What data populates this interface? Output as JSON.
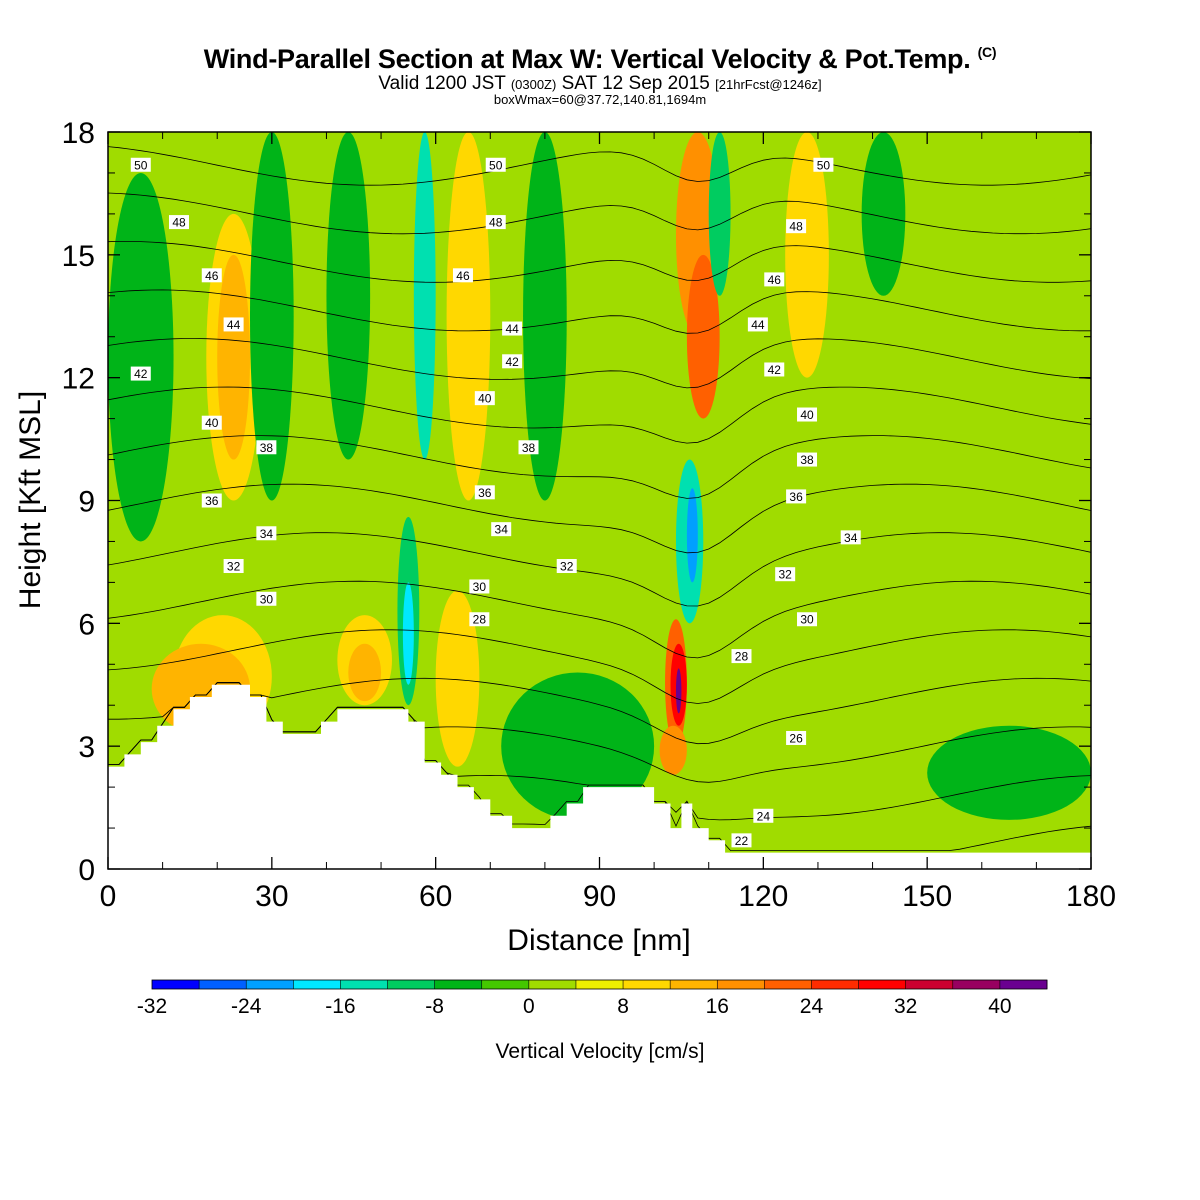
{
  "header": {
    "title": "Wind-Parallel Section at Max W: Vertical Velocity & Pot.Temp.",
    "copyright_mark": "(C)",
    "subtitle_prefix": "Valid 1200 JST",
    "subtitle_utc": "(0300Z)",
    "subtitle_date": "SAT 12 Sep 2015",
    "subtitle_fcst": "[21hrFcst@1246z]",
    "box_info": "boxWmax=60@37.72,140.81,1694m"
  },
  "chart_data": {
    "type": "heatmap",
    "xlabel": "Distance [nm]",
    "ylabel": "Height [Kft MSL]",
    "xlim": [
      0,
      180
    ],
    "ylim": [
      0,
      18
    ],
    "xticks": [
      0,
      30,
      60,
      90,
      120,
      150,
      180
    ],
    "yticks": [
      0,
      3,
      6,
      9,
      12,
      15,
      18
    ],
    "colorbar": {
      "label": "Vertical Velocity [cm/s]",
      "ticks": [
        -32,
        -24,
        -16,
        -8,
        0,
        8,
        16,
        24,
        32,
        40
      ],
      "bins": [
        -32,
        -28,
        -24,
        -20,
        -16,
        -12,
        -8,
        -4,
        0,
        4,
        8,
        12,
        16,
        20,
        24,
        28,
        32,
        36,
        40,
        44
      ],
      "colors": [
        "#0000ff",
        "#0060ff",
        "#00a0ff",
        "#00e8ff",
        "#00e0b0",
        "#00cc60",
        "#00b418",
        "#44c800",
        "#a0dc00",
        "#eef000",
        "#ffd800",
        "#ffb400",
        "#ff9000",
        "#ff6000",
        "#ff2c00",
        "#ff0000",
        "#cc0030",
        "#980060",
        "#6a0090"
      ]
    },
    "terrain_kft": [
      [
        0,
        2.5
      ],
      [
        3,
        2.5
      ],
      [
        3,
        2.8
      ],
      [
        6,
        2.8
      ],
      [
        6,
        3.1
      ],
      [
        9,
        3.1
      ],
      [
        9,
        3.5
      ],
      [
        12,
        3.5
      ],
      [
        12,
        3.9
      ],
      [
        15,
        3.9
      ],
      [
        15,
        4.2
      ],
      [
        19,
        4.2
      ],
      [
        19,
        4.5
      ],
      [
        26,
        4.5
      ],
      [
        26,
        4.2
      ],
      [
        29,
        4.2
      ],
      [
        29,
        3.6
      ],
      [
        32,
        3.6
      ],
      [
        32,
        3.3
      ],
      [
        39,
        3.3
      ],
      [
        39,
        3.6
      ],
      [
        42,
        3.6
      ],
      [
        42,
        3.9
      ],
      [
        55,
        3.9
      ],
      [
        55,
        3.6
      ],
      [
        58,
        3.6
      ],
      [
        58,
        2.6
      ],
      [
        61,
        2.6
      ],
      [
        61,
        2.3
      ],
      [
        64,
        2.3
      ],
      [
        64,
        2.0
      ],
      [
        67,
        2.0
      ],
      [
        67,
        1.7
      ],
      [
        70,
        1.7
      ],
      [
        70,
        1.3
      ],
      [
        74,
        1.3
      ],
      [
        74,
        1.0
      ],
      [
        81,
        1.0
      ],
      [
        81,
        1.3
      ],
      [
        84,
        1.3
      ],
      [
        84,
        1.6
      ],
      [
        87,
        1.6
      ],
      [
        87,
        2.0
      ],
      [
        100,
        2.0
      ],
      [
        100,
        1.6
      ],
      [
        103,
        1.6
      ],
      [
        103,
        1.0
      ],
      [
        105,
        1.0
      ],
      [
        105,
        1.6
      ],
      [
        107,
        1.6
      ],
      [
        107,
        1.0
      ],
      [
        110,
        1.0
      ],
      [
        110,
        0.7
      ],
      [
        113,
        0.7
      ],
      [
        113,
        0.4
      ],
      [
        180,
        0.4
      ]
    ],
    "shading": {
      "background": 0,
      "cells": [
        {
          "x": [
            12,
            30
          ],
          "y": [
            3.2,
            6.2
          ],
          "w": 8
        },
        {
          "x": [
            8,
            26
          ],
          "y": [
            3.3,
            5.5
          ],
          "w": 14
        },
        {
          "x": [
            18,
            28
          ],
          "y": [
            9,
            16
          ],
          "w": 8
        },
        {
          "x": [
            20,
            26
          ],
          "y": [
            10,
            15
          ],
          "w": 12
        },
        {
          "x": [
            0,
            12
          ],
          "y": [
            8,
            17
          ],
          "w": -8
        },
        {
          "x": [
            26,
            34
          ],
          "y": [
            9,
            18
          ],
          "w": -8
        },
        {
          "x": [
            42,
            52
          ],
          "y": [
            4,
            6.2
          ],
          "w": 8
        },
        {
          "x": [
            44,
            50
          ],
          "y": [
            4.1,
            5.5
          ],
          "w": 14
        },
        {
          "x": [
            53,
            57
          ],
          "y": [
            4,
            8.6
          ],
          "w": -12
        },
        {
          "x": [
            54,
            56
          ],
          "y": [
            4.5,
            7
          ],
          "w": -18
        },
        {
          "x": [
            56,
            60
          ],
          "y": [
            10,
            18
          ],
          "w": -14
        },
        {
          "x": [
            62,
            70
          ],
          "y": [
            9,
            18
          ],
          "w": 8
        },
        {
          "x": [
            60,
            68
          ],
          "y": [
            2.5,
            6.8
          ],
          "w": 8
        },
        {
          "x": [
            76,
            84
          ],
          "y": [
            9,
            18
          ],
          "w": -6
        },
        {
          "x": [
            72,
            100
          ],
          "y": [
            1.2,
            4.8
          ],
          "w": -6
        },
        {
          "x": [
            40,
            48
          ],
          "y": [
            10,
            18
          ],
          "w": -6
        },
        {
          "x": [
            104,
            112
          ],
          "y": [
            13,
            18
          ],
          "w": 16
        },
        {
          "x": [
            106,
            112
          ],
          "y": [
            11,
            15
          ],
          "w": 20
        },
        {
          "x": [
            102,
            106
          ],
          "y": [
            3,
            6.1
          ],
          "w": 20
        },
        {
          "x": [
            103,
            106
          ],
          "y": [
            3.5,
            5.5
          ],
          "w": 30
        },
        {
          "x": [
            104,
            105
          ],
          "y": [
            3.8,
            4.9
          ],
          "w": 42
        },
        {
          "x": [
            101,
            106
          ],
          "y": [
            2.3,
            3.5
          ],
          "w": 18
        },
        {
          "x": [
            104,
            109
          ],
          "y": [
            6,
            10
          ],
          "w": -14
        },
        {
          "x": [
            106,
            108
          ],
          "y": [
            7,
            9.3
          ],
          "w": -24
        },
        {
          "x": [
            110,
            114
          ],
          "y": [
            14,
            18
          ],
          "w": -12
        },
        {
          "x": [
            124,
            132
          ],
          "y": [
            12,
            18
          ],
          "w": 8
        },
        {
          "x": [
            138,
            146
          ],
          "y": [
            14,
            18
          ],
          "w": -6
        },
        {
          "x": [
            132,
            138
          ],
          "y": [
            3,
            5
          ],
          "w": 3
        },
        {
          "x": [
            150,
            180
          ],
          "y": [
            1.2,
            3.5
          ],
          "w": -6
        },
        {
          "x": [
            160,
            175
          ],
          "y": [
            16,
            18
          ],
          "w": 1
        }
      ]
    },
    "theta_contours_K": [
      22,
      24,
      26,
      28,
      30,
      32,
      34,
      36,
      38,
      40,
      42,
      44,
      46,
      48,
      50
    ],
    "contour_labels": [
      {
        "v": "50",
        "x": 6,
        "y": 17.2
      },
      {
        "v": "48",
        "x": 13,
        "y": 15.8
      },
      {
        "v": "46",
        "x": 19,
        "y": 14.5
      },
      {
        "v": "44",
        "x": 23,
        "y": 13.3
      },
      {
        "v": "42",
        "x": 6,
        "y": 12.1
      },
      {
        "v": "40",
        "x": 19,
        "y": 10.9
      },
      {
        "v": "38",
        "x": 29,
        "y": 10.3
      },
      {
        "v": "36",
        "x": 19,
        "y": 9.0
      },
      {
        "v": "34",
        "x": 29,
        "y": 8.2
      },
      {
        "v": "32",
        "x": 23,
        "y": 7.4
      },
      {
        "v": "30",
        "x": 29,
        "y": 6.6
      },
      {
        "v": "50",
        "x": 71,
        "y": 17.2
      },
      {
        "v": "48",
        "x": 71,
        "y": 15.8
      },
      {
        "v": "46",
        "x": 65,
        "y": 14.5
      },
      {
        "v": "44",
        "x": 74,
        "y": 13.2
      },
      {
        "v": "42",
        "x": 74,
        "y": 12.4
      },
      {
        "v": "40",
        "x": 69,
        "y": 11.5
      },
      {
        "v": "38",
        "x": 77,
        "y": 10.3
      },
      {
        "v": "36",
        "x": 69,
        "y": 9.2
      },
      {
        "v": "34",
        "x": 72,
        "y": 8.3
      },
      {
        "v": "32",
        "x": 84,
        "y": 7.4
      },
      {
        "v": "30",
        "x": 68,
        "y": 6.9
      },
      {
        "v": "28",
        "x": 68,
        "y": 6.1
      },
      {
        "v": "50",
        "x": 131,
        "y": 17.2
      },
      {
        "v": "48",
        "x": 126,
        "y": 15.7
      },
      {
        "v": "46",
        "x": 122,
        "y": 14.4
      },
      {
        "v": "44",
        "x": 119,
        "y": 13.3
      },
      {
        "v": "42",
        "x": 122,
        "y": 12.2
      },
      {
        "v": "40",
        "x": 128,
        "y": 11.1
      },
      {
        "v": "38",
        "x": 128,
        "y": 10.0
      },
      {
        "v": "36",
        "x": 126,
        "y": 9.1
      },
      {
        "v": "34",
        "x": 136,
        "y": 8.1
      },
      {
        "v": "32",
        "x": 124,
        "y": 7.2
      },
      {
        "v": "30",
        "x": 128,
        "y": 6.1
      },
      {
        "v": "28",
        "x": 116,
        "y": 5.2
      },
      {
        "v": "26",
        "x": 126,
        "y": 3.2
      },
      {
        "v": "24",
        "x": 120,
        "y": 1.3
      },
      {
        "v": "22",
        "x": 116,
        "y": 0.7
      }
    ]
  }
}
